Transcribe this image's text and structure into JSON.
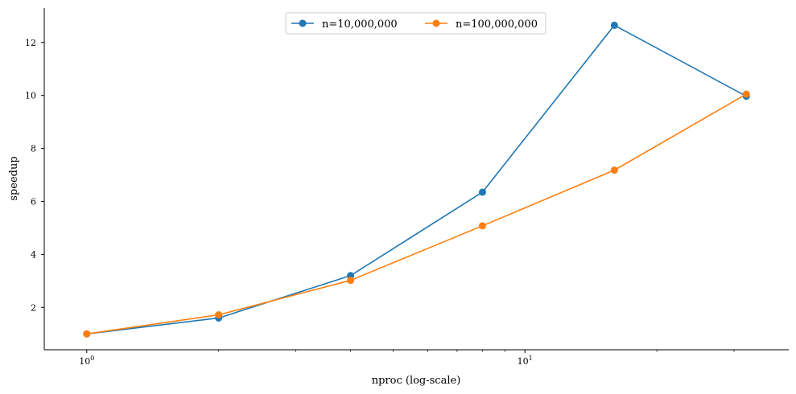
{
  "chart_data": {
    "type": "line",
    "xscale": "log",
    "xlabel": "nproc (log-scale)",
    "ylabel": "speedup",
    "xlim": [
      0.8,
      40
    ],
    "ylim": [
      0.4,
      13.3
    ],
    "x": [
      1,
      2,
      4,
      8,
      16,
      32
    ],
    "x_ticks": [
      {
        "value": 1,
        "base": "10",
        "exp": "0"
      },
      {
        "value": 10,
        "base": "10",
        "exp": "1"
      }
    ],
    "x_minor_ticks": [
      2,
      3,
      4,
      5,
      6,
      7,
      8,
      9,
      20,
      30
    ],
    "y_ticks": [
      2,
      4,
      6,
      8,
      10,
      12
    ],
    "grid": false,
    "legend": {
      "placement": "top-center",
      "columns": 2
    },
    "series": [
      {
        "name": "n=10,000,000",
        "color": "#1f77b4",
        "marker": "circle",
        "values": [
          1.0,
          1.6,
          3.2,
          6.35,
          12.65,
          9.97
        ]
      },
      {
        "name": "n=100,000,000",
        "color": "#ff7f0e",
        "marker": "circle",
        "values": [
          1.0,
          1.72,
          3.02,
          5.08,
          7.18,
          10.05
        ]
      }
    ]
  }
}
